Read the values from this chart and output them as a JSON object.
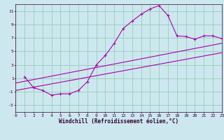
{
  "xlabel": "Windchill (Refroidissement éolien,°C)",
  "bg_color": "#cce8ee",
  "line_color": "#aa00aa",
  "grid_color": "#99ccbb",
  "xlim": [
    0,
    23
  ],
  "ylim": [
    -4,
    12
  ],
  "xticks": [
    0,
    1,
    2,
    3,
    4,
    5,
    6,
    7,
    8,
    9,
    10,
    11,
    12,
    13,
    14,
    15,
    16,
    17,
    18,
    19,
    20,
    21,
    22,
    23
  ],
  "yticks": [
    -3,
    -1,
    1,
    3,
    5,
    7,
    9,
    11
  ],
  "line1_x": [
    1,
    2,
    3,
    4,
    5,
    6,
    7,
    8,
    9,
    10,
    11,
    12,
    13,
    14,
    15,
    16,
    17,
    18,
    19,
    20,
    21,
    22,
    23
  ],
  "line1_y": [
    1.2,
    -0.4,
    -0.8,
    -1.5,
    -1.3,
    -1.3,
    -0.8,
    0.5,
    3.0,
    4.4,
    6.2,
    8.4,
    9.5,
    10.5,
    11.3,
    11.8,
    10.3,
    7.3,
    7.2,
    6.8,
    7.3,
    7.3,
    6.9
  ],
  "line2_x": [
    0,
    23
  ],
  "line2_y": [
    0.3,
    6.2
  ],
  "line3_x": [
    0,
    23
  ],
  "line3_y": [
    -0.8,
    4.8
  ],
  "xlabel_fontsize": 5.5,
  "tick_fontsize": 4.5
}
